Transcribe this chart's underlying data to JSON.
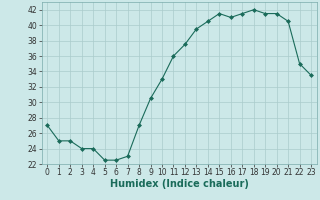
{
  "x": [
    0,
    1,
    2,
    3,
    4,
    5,
    6,
    7,
    8,
    9,
    10,
    11,
    12,
    13,
    14,
    15,
    16,
    17,
    18,
    19,
    20,
    21,
    22,
    23
  ],
  "y": [
    27,
    25,
    25,
    24,
    24,
    22.5,
    22.5,
    23,
    27,
    30.5,
    33,
    36,
    37.5,
    39.5,
    40.5,
    41.5,
    41,
    41.5,
    42,
    41.5,
    41.5,
    40.5,
    35,
    33.5
  ],
  "xlabel": "Humidex (Indice chaleur)",
  "xlim": [
    -0.5,
    23.5
  ],
  "ylim": [
    22,
    43
  ],
  "yticks": [
    22,
    24,
    26,
    28,
    30,
    32,
    34,
    36,
    38,
    40,
    42
  ],
  "xticks": [
    0,
    1,
    2,
    3,
    4,
    5,
    6,
    7,
    8,
    9,
    10,
    11,
    12,
    13,
    14,
    15,
    16,
    17,
    18,
    19,
    20,
    21,
    22,
    23
  ],
  "line_color": "#1a6b5a",
  "marker": "D",
  "marker_size": 2,
  "bg_color": "#cce8e8",
  "grid_color": "#aacccc",
  "xlabel_fontsize": 7,
  "tick_fontsize": 5.5
}
